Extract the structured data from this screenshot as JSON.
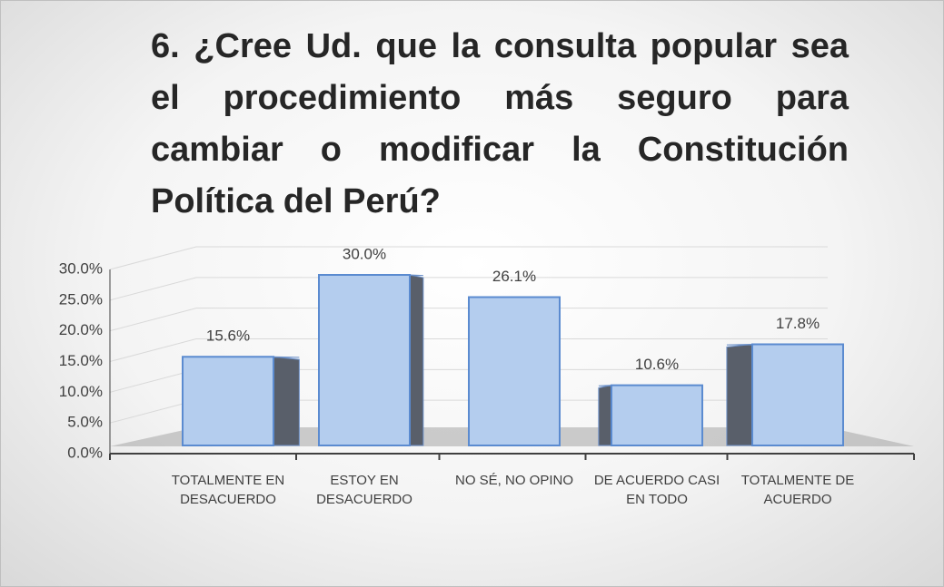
{
  "chart_data": {
    "type": "bar3d",
    "title": "6. ¿Cree Ud. que la consulta popular sea el procedimiento más seguro para cambiar o modificar la Constitución Política del Perú?",
    "categories": [
      "TOTALMENTE EN DESACUERDO",
      "ESTOY EN DESACUERDO",
      "NO SÉ, NO OPINO",
      "DE ACUERDO CASI EN TODO",
      "TOTALMENTE DE ACUERDO"
    ],
    "values": [
      15.6,
      30.0,
      26.1,
      10.6,
      17.8
    ],
    "value_labels": [
      "15.6%",
      "30.0%",
      "26.1%",
      "10.6%",
      "17.8%"
    ],
    "color": "#b4cdee",
    "ylim": [
      0,
      30
    ],
    "yticks": [
      {
        "value": 0,
        "label": "0.0%"
      },
      {
        "value": 5,
        "label": "5.0%"
      },
      {
        "value": 10,
        "label": "10.0%"
      },
      {
        "value": 15,
        "label": "15.0%"
      },
      {
        "value": 20,
        "label": "20.0%"
      },
      {
        "value": 25,
        "label": "25.0%"
      },
      {
        "value": 30,
        "label": "30.0%"
      }
    ],
    "grid": true
  }
}
